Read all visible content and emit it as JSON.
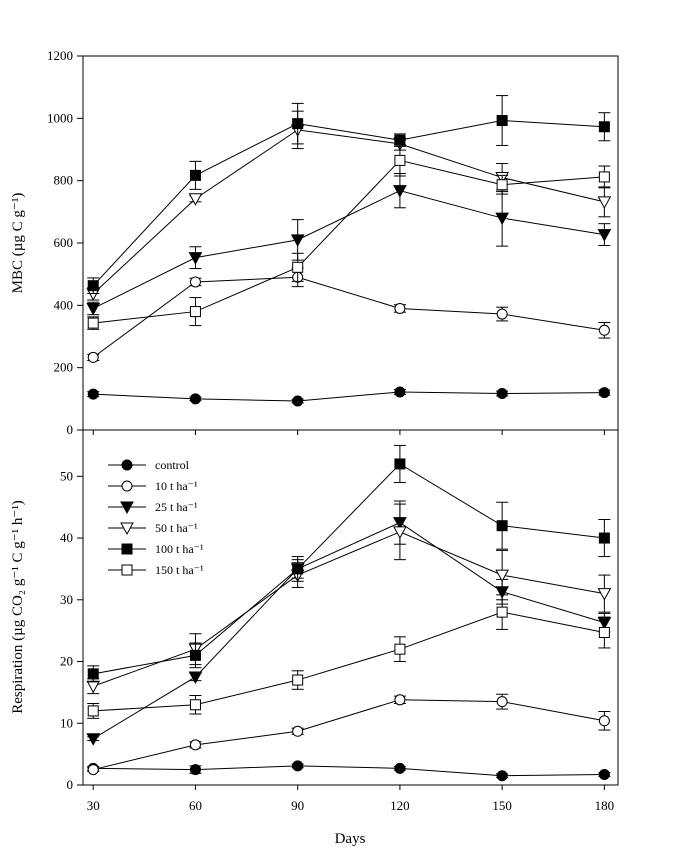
{
  "chart_data": [
    {
      "type": "line",
      "ylabel": "MBC (µg C g⁻¹)",
      "xlabel": "",
      "x": [
        30,
        60,
        90,
        120,
        150,
        180
      ],
      "xlim": [
        27,
        184
      ],
      "ylim": [
        0,
        1200
      ],
      "yticks": [
        0,
        200,
        400,
        600,
        800,
        1000,
        1200
      ],
      "grid": false,
      "legend": "none",
      "series": [
        {
          "name": "control",
          "marker": "filled-circle",
          "values": [
            115,
            100,
            93,
            122,
            117,
            120
          ],
          "errors": [
            8,
            6,
            6,
            8,
            8,
            8
          ]
        },
        {
          "name": "10 t ha⁻¹",
          "marker": "open-circle",
          "values": [
            233,
            475,
            490,
            390,
            372,
            320
          ],
          "errors": [
            10,
            12,
            30,
            12,
            22,
            25
          ]
        },
        {
          "name": "25 t ha⁻¹",
          "marker": "filled-triangle-down",
          "values": [
            390,
            553,
            610,
            768,
            680,
            627
          ],
          "errors": [
            20,
            35,
            65,
            55,
            90,
            35
          ]
        },
        {
          "name": "50 t ha⁻¹",
          "marker": "open-triangle-down",
          "values": [
            437,
            742,
            963,
            918,
            810,
            732
          ],
          "errors": [
            20,
            10,
            60,
            20,
            45,
            48
          ]
        },
        {
          "name": "100 t ha⁻¹",
          "marker": "filled-square",
          "values": [
            463,
            817,
            983,
            930,
            993,
            973
          ],
          "errors": [
            25,
            45,
            65,
            20,
            80,
            45
          ]
        },
        {
          "name": "150 t ha⁻¹",
          "marker": "open-square",
          "values": [
            343,
            380,
            522,
            865,
            787,
            812
          ],
          "errors": [
            20,
            45,
            45,
            50,
            30,
            35
          ]
        }
      ]
    },
    {
      "type": "line",
      "ylabel": "Respiration (µg CO₂ g⁻¹ C g⁻¹ h⁻¹)",
      "xlabel": "Days",
      "x": [
        30,
        60,
        90,
        120,
        150,
        180
      ],
      "xticks": [
        30,
        60,
        90,
        120,
        150,
        180
      ],
      "xlim": [
        27,
        184
      ],
      "ylim": [
        0,
        57.5
      ],
      "yticks": [
        0,
        10,
        20,
        30,
        40,
        50
      ],
      "grid": false,
      "legend": "top-left",
      "series": [
        {
          "name": "control",
          "marker": "filled-circle",
          "values": [
            2.7,
            2.5,
            3.1,
            2.7,
            1.5,
            1.7
          ],
          "errors": [
            0.3,
            0.6,
            0.3,
            0.3,
            0.3,
            0.3
          ]
        },
        {
          "name": "10 t ha⁻¹",
          "marker": "open-circle",
          "values": [
            2.5,
            6.5,
            8.7,
            13.8,
            13.5,
            10.4
          ],
          "errors": [
            0.3,
            0.5,
            0.5,
            0.6,
            1.2,
            1.5
          ]
        },
        {
          "name": "25 t ha⁻¹",
          "marker": "filled-triangle-down",
          "values": [
            7.5,
            17.5,
            35.0,
            42.5,
            31.3,
            26.3
          ],
          "errors": [
            0.3,
            0.6,
            1.5,
            3.5,
            2.0,
            1.5
          ]
        },
        {
          "name": "50 t ha⁻¹",
          "marker": "open-triangle-down",
          "values": [
            16.0,
            22.0,
            34.0,
            41.0,
            34.0,
            31.0
          ],
          "errors": [
            1.2,
            2.5,
            2.0,
            4.5,
            4.0,
            3.0
          ]
        },
        {
          "name": "100 t ha⁻¹",
          "marker": "filled-square",
          "values": [
            18.0,
            21.0,
            35.0,
            52.0,
            42.0,
            40.0
          ],
          "errors": [
            1.3,
            2.0,
            2.0,
            3.0,
            3.8,
            3.0
          ]
        },
        {
          "name": "150 t ha⁻¹",
          "marker": "open-square",
          "values": [
            12.0,
            13.0,
            17.0,
            22.0,
            28.0,
            24.7
          ],
          "errors": [
            1.2,
            1.5,
            1.5,
            2.0,
            2.8,
            2.5
          ]
        }
      ]
    }
  ]
}
